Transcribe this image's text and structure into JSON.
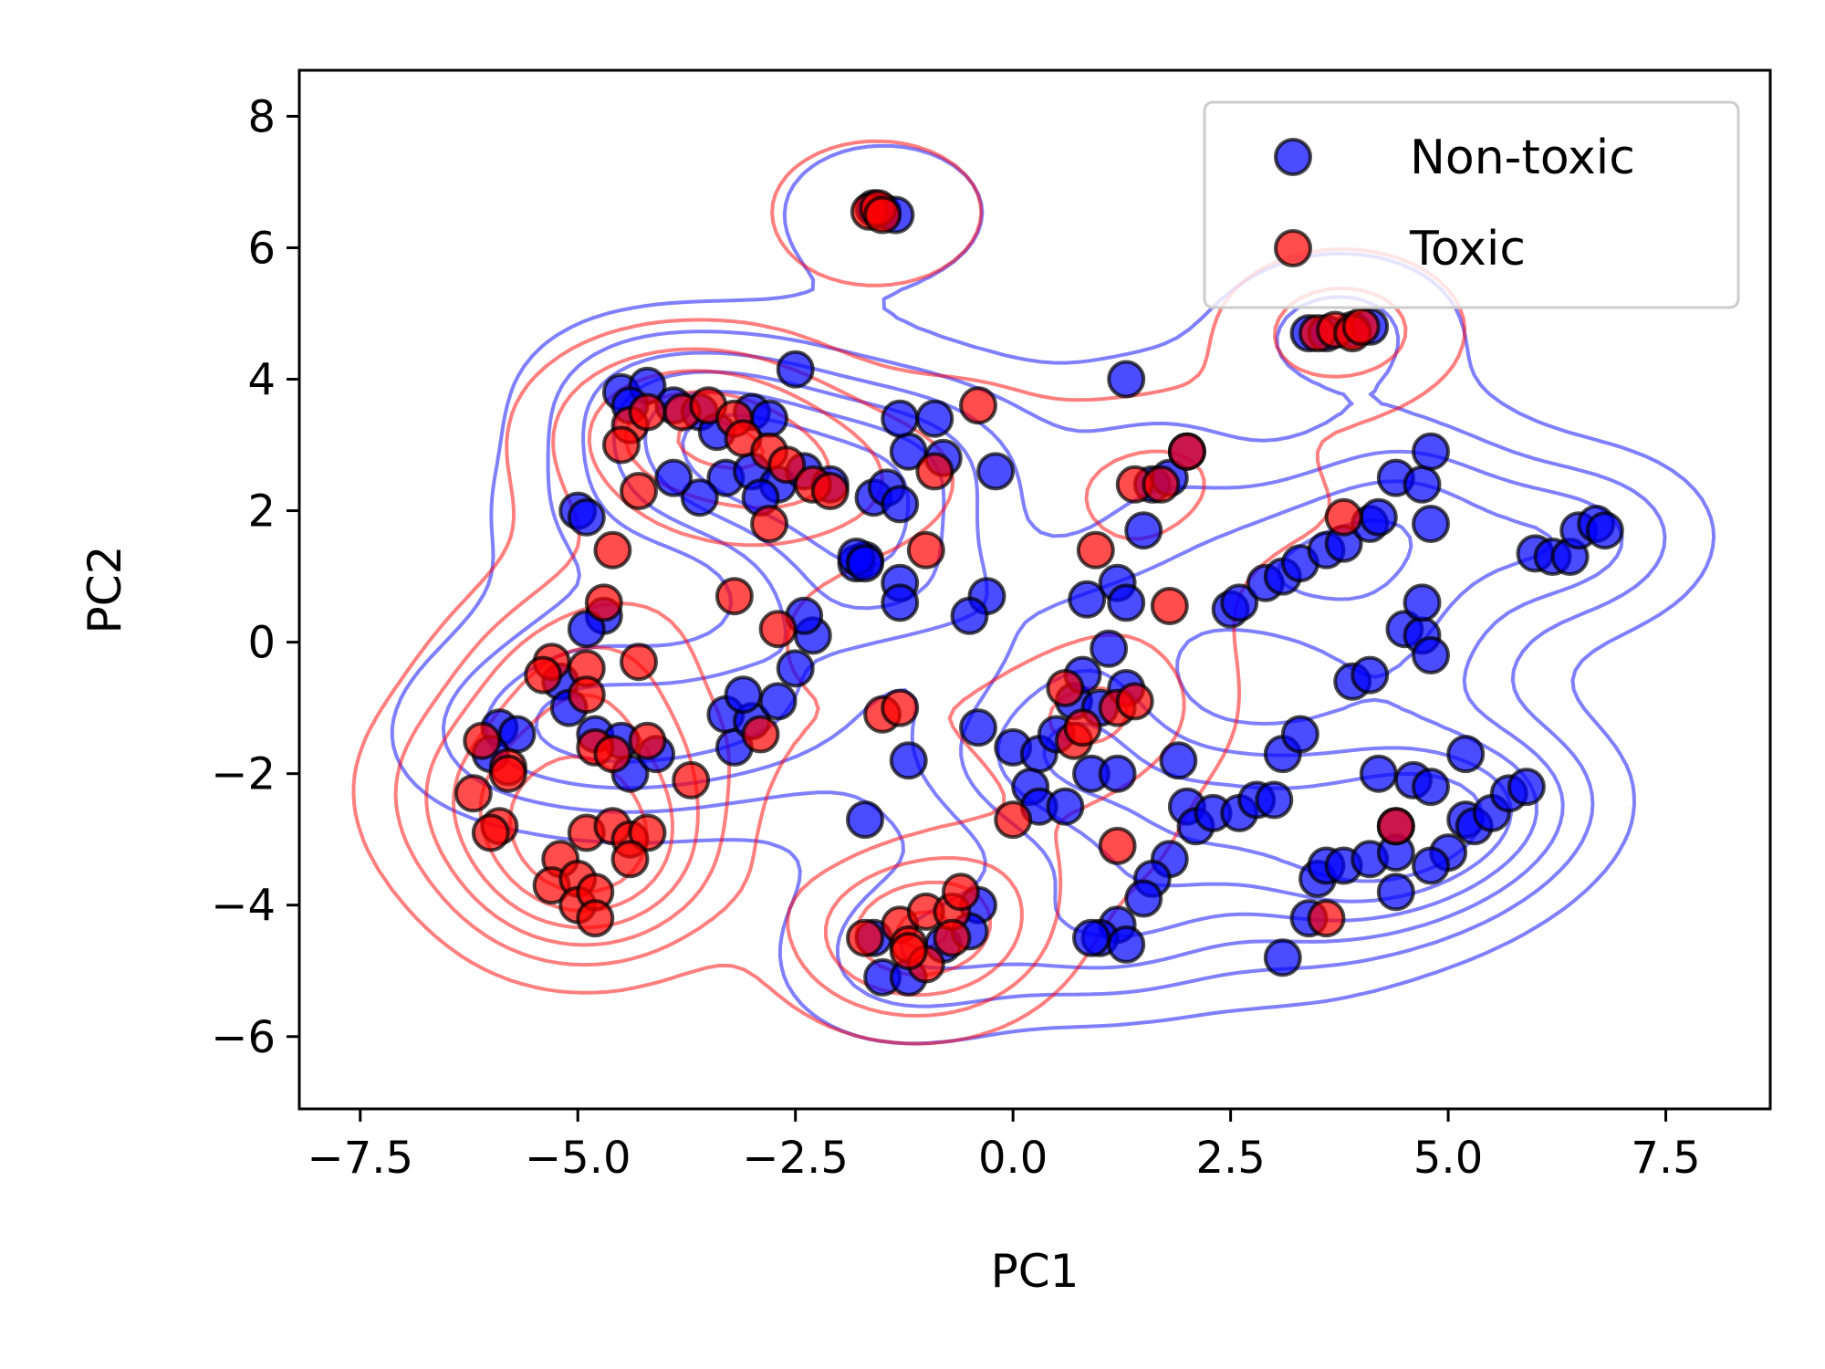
{
  "chart_data": {
    "type": "scatter",
    "title": "",
    "xlabel": "PC1",
    "ylabel": "PC2",
    "xlim": [
      -8.2,
      8.7
    ],
    "ylim": [
      -7.1,
      8.7
    ],
    "xticks": [
      -7.5,
      -5.0,
      -2.5,
      0.0,
      2.5,
      5.0,
      7.5
    ],
    "xtick_labels": [
      "−7.5",
      "−5.0",
      "−2.5",
      "0.0",
      "2.5",
      "5.0",
      "7.5"
    ],
    "yticks": [
      -6,
      -4,
      -2,
      0,
      2,
      4,
      6,
      8
    ],
    "ytick_labels": [
      "−6",
      "−4",
      "−2",
      "0",
      "2",
      "4",
      "6",
      "8"
    ],
    "grid": false,
    "legend": {
      "position": "top-right"
    },
    "series": [
      {
        "name": "Non-toxic",
        "color": "#0000ff",
        "contour_color": "#0000ff",
        "points": [
          [
            -1.6,
            6.6
          ],
          [
            -1.5,
            6.55
          ],
          [
            -1.35,
            6.5
          ],
          [
            3.4,
            4.7
          ],
          [
            3.6,
            4.7
          ],
          [
            3.9,
            4.75
          ],
          [
            4.1,
            4.8
          ],
          [
            -2.5,
            4.15
          ],
          [
            1.3,
            4.0
          ],
          [
            -4.5,
            3.8
          ],
          [
            -4.2,
            3.9
          ],
          [
            -4.4,
            3.6
          ],
          [
            -3.9,
            3.6
          ],
          [
            -3.6,
            3.5
          ],
          [
            -3.4,
            3.2
          ],
          [
            -3.0,
            3.5
          ],
          [
            -2.8,
            3.4
          ],
          [
            -3.3,
            2.5
          ],
          [
            -3.0,
            2.6
          ],
          [
            -2.7,
            2.4
          ],
          [
            -2.4,
            2.6
          ],
          [
            -2.1,
            2.4
          ],
          [
            -3.6,
            2.2
          ],
          [
            -3.9,
            2.5
          ],
          [
            -2.9,
            2.2
          ],
          [
            -1.6,
            2.2
          ],
          [
            -1.45,
            2.35
          ],
          [
            -1.3,
            2.1
          ],
          [
            -1.2,
            2.9
          ],
          [
            -1.3,
            3.4
          ],
          [
            -0.9,
            3.4
          ],
          [
            -0.8,
            2.8
          ],
          [
            -0.2,
            2.6
          ],
          [
            1.5,
            1.7
          ],
          [
            1.6,
            2.4
          ],
          [
            1.8,
            2.5
          ],
          [
            2.0,
            2.9
          ],
          [
            -5.0,
            2.0
          ],
          [
            -4.9,
            1.9
          ],
          [
            -1.8,
            1.2
          ],
          [
            -1.7,
            1.25
          ],
          [
            -1.3,
            0.9
          ],
          [
            -1.3,
            0.6
          ],
          [
            -0.3,
            0.7
          ],
          [
            -0.5,
            0.4
          ],
          [
            0.85,
            0.65
          ],
          [
            1.2,
            0.9
          ],
          [
            1.3,
            0.6
          ],
          [
            -4.7,
            0.4
          ],
          [
            -4.9,
            0.2
          ],
          [
            -5.2,
            -0.6
          ],
          [
            -5.1,
            -1.0
          ],
          [
            -4.8,
            -1.4
          ],
          [
            -4.5,
            -1.5
          ],
          [
            -4.4,
            -2.0
          ],
          [
            -4.1,
            -1.7
          ],
          [
            -3.3,
            -1.1
          ],
          [
            -3.2,
            -1.6
          ],
          [
            -3.0,
            -1.2
          ],
          [
            -2.7,
            -0.9
          ],
          [
            -2.5,
            -0.4
          ],
          [
            -2.3,
            0.1
          ],
          [
            -2.4,
            0.4
          ],
          [
            -3.1,
            -0.8
          ],
          [
            -5.9,
            -1.3
          ],
          [
            -5.7,
            -1.4
          ],
          [
            -6.0,
            -1.7
          ],
          [
            -0.4,
            -1.3
          ],
          [
            -1.2,
            -1.8
          ],
          [
            0.0,
            -1.6
          ],
          [
            0.3,
            -1.7
          ],
          [
            0.5,
            -1.4
          ],
          [
            0.7,
            -0.9
          ],
          [
            0.8,
            -0.5
          ],
          [
            1.0,
            -1.0
          ],
          [
            1.1,
            -0.1
          ],
          [
            1.3,
            -0.7
          ],
          [
            0.2,
            -2.2
          ],
          [
            0.3,
            -2.5
          ],
          [
            0.6,
            -2.5
          ],
          [
            0.9,
            -2.0
          ],
          [
            1.2,
            -2.0
          ],
          [
            1.9,
            -1.8
          ],
          [
            2.0,
            -2.5
          ],
          [
            2.1,
            -2.8
          ],
          [
            2.3,
            -2.6
          ],
          [
            2.6,
            -2.6
          ],
          [
            2.8,
            -2.4
          ],
          [
            3.0,
            -2.4
          ],
          [
            3.1,
            -1.7
          ],
          [
            3.3,
            -1.4
          ],
          [
            1.8,
            -3.3
          ],
          [
            1.6,
            -3.6
          ],
          [
            1.5,
            -3.9
          ],
          [
            1.2,
            -4.3
          ],
          [
            1.0,
            -4.5
          ],
          [
            1.3,
            -4.6
          ],
          [
            0.9,
            -4.5
          ],
          [
            2.5,
            0.5
          ],
          [
            2.6,
            0.6
          ],
          [
            2.9,
            0.9
          ],
          [
            3.1,
            1.0
          ],
          [
            3.3,
            1.2
          ],
          [
            3.6,
            1.4
          ],
          [
            3.8,
            1.5
          ],
          [
            4.1,
            1.8
          ],
          [
            4.2,
            1.9
          ],
          [
            4.4,
            2.5
          ],
          [
            4.7,
            2.4
          ],
          [
            4.8,
            2.9
          ],
          [
            4.8,
            1.8
          ],
          [
            3.9,
            -0.6
          ],
          [
            4.1,
            -0.5
          ],
          [
            4.5,
            0.2
          ],
          [
            4.7,
            0.1
          ],
          [
            4.7,
            0.6
          ],
          [
            4.8,
            -0.2
          ],
          [
            4.2,
            -2.0
          ],
          [
            4.6,
            -2.1
          ],
          [
            4.8,
            -2.2
          ],
          [
            5.2,
            -1.7
          ],
          [
            5.2,
            -2.7
          ],
          [
            5.3,
            -2.8
          ],
          [
            5.5,
            -2.6
          ],
          [
            5.7,
            -2.3
          ],
          [
            5.9,
            -2.2
          ],
          [
            5.0,
            -3.2
          ],
          [
            4.8,
            -3.4
          ],
          [
            3.5,
            -3.6
          ],
          [
            3.6,
            -3.4
          ],
          [
            3.8,
            -3.4
          ],
          [
            4.1,
            -3.3
          ],
          [
            4.4,
            -3.2
          ],
          [
            4.4,
            -2.8
          ],
          [
            3.4,
            -4.2
          ],
          [
            3.1,
            -4.8
          ],
          [
            4.4,
            -3.8
          ],
          [
            6.0,
            1.35
          ],
          [
            6.2,
            1.3
          ],
          [
            6.4,
            1.3
          ],
          [
            6.5,
            1.7
          ],
          [
            6.7,
            1.8
          ],
          [
            6.8,
            1.7
          ],
          [
            -1.5,
            -5.1
          ],
          [
            -1.2,
            -5.1
          ],
          [
            -0.8,
            -4.6
          ],
          [
            -0.4,
            -4.0
          ],
          [
            -0.5,
            -4.4
          ],
          [
            -1.6,
            -4.5
          ],
          [
            -1.7,
            -2.7
          ],
          [
            -1.8,
            1.3
          ],
          [
            -1.7,
            1.2
          ]
        ]
      },
      {
        "name": "Toxic",
        "color": "#ff0000",
        "contour_color": "#ff0000",
        "points": [
          [
            -1.65,
            6.55
          ],
          [
            -1.55,
            6.6
          ],
          [
            -1.5,
            6.5
          ],
          [
            3.5,
            4.7
          ],
          [
            3.7,
            4.75
          ],
          [
            3.9,
            4.7
          ],
          [
            4.0,
            4.8
          ],
          [
            -4.4,
            3.3
          ],
          [
            -4.2,
            3.5
          ],
          [
            -3.8,
            3.5
          ],
          [
            -3.5,
            3.6
          ],
          [
            -3.2,
            3.4
          ],
          [
            -3.1,
            3.1
          ],
          [
            -2.8,
            2.9
          ],
          [
            -2.6,
            2.7
          ],
          [
            -2.3,
            2.4
          ],
          [
            -2.1,
            2.3
          ],
          [
            -2.8,
            1.8
          ],
          [
            -4.3,
            2.3
          ],
          [
            -4.5,
            3.0
          ],
          [
            -0.9,
            2.6
          ],
          [
            -0.4,
            3.6
          ],
          [
            0.95,
            1.4
          ],
          [
            1.8,
            0.55
          ],
          [
            1.4,
            2.4
          ],
          [
            1.7,
            2.4
          ],
          [
            2.0,
            2.9
          ],
          [
            3.8,
            1.9
          ],
          [
            -3.2,
            0.7
          ],
          [
            -2.7,
            0.2
          ],
          [
            -1.0,
            1.4
          ],
          [
            -4.7,
            0.6
          ],
          [
            -4.6,
            1.4
          ],
          [
            -5.3,
            -0.3
          ],
          [
            -5.4,
            -0.5
          ],
          [
            -4.9,
            -0.4
          ],
          [
            -4.9,
            -0.8
          ],
          [
            -4.3,
            -0.3
          ],
          [
            -4.8,
            -1.6
          ],
          [
            -4.6,
            -1.7
          ],
          [
            -4.2,
            -1.5
          ],
          [
            -3.7,
            -2.1
          ],
          [
            -2.9,
            -1.4
          ],
          [
            -6.1,
            -1.5
          ],
          [
            -5.8,
            -1.9
          ],
          [
            -5.8,
            -2.0
          ],
          [
            -6.2,
            -2.3
          ],
          [
            -5.9,
            -2.8
          ],
          [
            -6.0,
            -2.9
          ],
          [
            -5.2,
            -3.3
          ],
          [
            -5.3,
            -3.7
          ],
          [
            -5.0,
            -3.6
          ],
          [
            -5.0,
            -4.0
          ],
          [
            -4.8,
            -3.8
          ],
          [
            -4.8,
            -4.2
          ],
          [
            -4.9,
            -2.9
          ],
          [
            -4.6,
            -2.8
          ],
          [
            -4.4,
            -3.0
          ],
          [
            -4.2,
            -2.9
          ],
          [
            -4.4,
            -3.3
          ],
          [
            -1.5,
            -1.1
          ],
          [
            -1.3,
            -1.0
          ],
          [
            0.6,
            -0.7
          ],
          [
            0.7,
            -1.5
          ],
          [
            0.8,
            -1.3
          ],
          [
            1.2,
            -1.0
          ],
          [
            1.4,
            -0.9
          ],
          [
            0.0,
            -2.7
          ],
          [
            1.2,
            -3.1
          ],
          [
            4.4,
            -2.8
          ],
          [
            3.6,
            -4.2
          ],
          [
            -1.7,
            -4.5
          ],
          [
            -1.3,
            -4.3
          ],
          [
            -1.0,
            -4.1
          ],
          [
            -1.2,
            -4.6
          ],
          [
            -1.0,
            -4.9
          ],
          [
            -0.7,
            -4.1
          ],
          [
            -0.7,
            -4.5
          ],
          [
            -0.6,
            -3.8
          ],
          [
            -1.2,
            -4.7
          ]
        ]
      }
    ]
  }
}
